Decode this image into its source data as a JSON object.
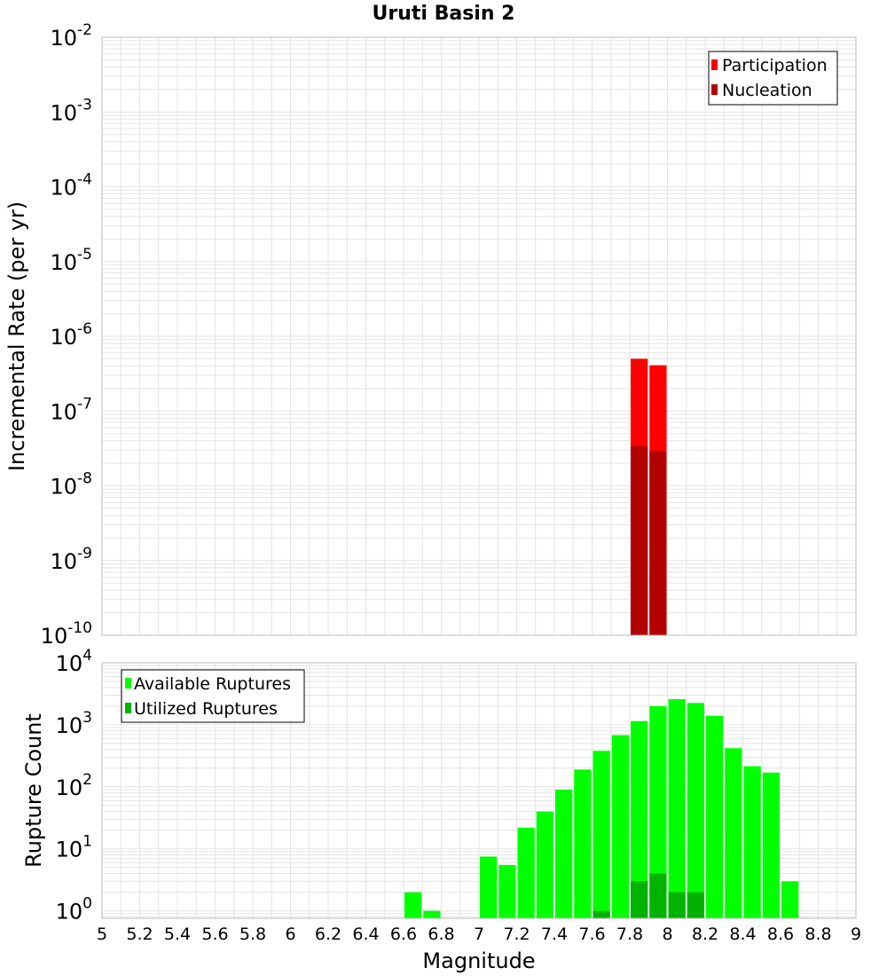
{
  "title": "Uruti Basin 2",
  "colors": {
    "participation": "#ff0000",
    "nucleation": "#b30000",
    "available": "#00ff00",
    "utilized": "#00b300",
    "grid": "#e4e4e4",
    "frame": "#bbbbbb"
  },
  "chart_data": [
    {
      "type": "bar",
      "yscale": "log",
      "ylabel": "Incremental Rate (per yr)",
      "ylim_exp": [
        -10,
        -2
      ],
      "ytick_base": "10",
      "ytick_exps": [
        "-10",
        "-9",
        "-8",
        "-7",
        "-6",
        "-5",
        "-4",
        "-3",
        "-2"
      ],
      "xlim": [
        5,
        9
      ],
      "bin_width": 0.1,
      "legend": [
        "Participation",
        "Nucleation"
      ],
      "legend_position": "top-right",
      "series": [
        {
          "name": "Participation",
          "color_key": "participation",
          "points": [
            {
              "x": 7.85,
              "y": 5e-07
            },
            {
              "x": 7.95,
              "y": 4.1e-07
            }
          ]
        },
        {
          "name": "Nucleation",
          "color_key": "nucleation",
          "points": [
            {
              "x": 7.85,
              "y": 3.4e-08
            },
            {
              "x": 7.95,
              "y": 2.9e-08
            }
          ]
        }
      ]
    },
    {
      "type": "bar",
      "yscale": "log",
      "ylabel": "Rupture Count",
      "xlabel": "Magnitude",
      "ylim_exp": [
        -0.12,
        4
      ],
      "ytick_base": "10",
      "ytick_exps": [
        "0",
        "1",
        "2",
        "3",
        "4"
      ],
      "xlim": [
        5,
        9
      ],
      "xticks": [
        "5",
        "5.2",
        "5.4",
        "5.6",
        "5.8",
        "6",
        "6.2",
        "6.4",
        "6.6",
        "6.8",
        "7",
        "7.2",
        "7.4",
        "7.6",
        "7.8",
        "8",
        "8.2",
        "8.4",
        "8.6",
        "8.8",
        "9"
      ],
      "bin_width": 0.1,
      "legend": [
        "Available Ruptures",
        "Utilized Ruptures"
      ],
      "legend_position": "top-left",
      "series": [
        {
          "name": "Available Ruptures",
          "color_key": "available",
          "points": [
            {
              "x": 6.65,
              "y": 2
            },
            {
              "x": 6.75,
              "y": 1
            },
            {
              "x": 7.05,
              "y": 7.5
            },
            {
              "x": 7.15,
              "y": 5.5
            },
            {
              "x": 7.25,
              "y": 22
            },
            {
              "x": 7.35,
              "y": 40
            },
            {
              "x": 7.45,
              "y": 90
            },
            {
              "x": 7.55,
              "y": 190
            },
            {
              "x": 7.65,
              "y": 380
            },
            {
              "x": 7.75,
              "y": 680
            },
            {
              "x": 7.85,
              "y": 1150
            },
            {
              "x": 7.95,
              "y": 2000
            },
            {
              "x": 8.05,
              "y": 2600
            },
            {
              "x": 8.15,
              "y": 2250
            },
            {
              "x": 8.25,
              "y": 1400
            },
            {
              "x": 8.35,
              "y": 420
            },
            {
              "x": 8.45,
              "y": 215
            },
            {
              "x": 8.55,
              "y": 170
            },
            {
              "x": 8.65,
              "y": 3
            }
          ]
        },
        {
          "name": "Utilized Ruptures",
          "color_key": "utilized",
          "points": [
            {
              "x": 7.65,
              "y": 1
            },
            {
              "x": 7.85,
              "y": 3
            },
            {
              "x": 7.95,
              "y": 4
            },
            {
              "x": 8.05,
              "y": 2
            },
            {
              "x": 8.15,
              "y": 2
            }
          ]
        }
      ]
    }
  ]
}
